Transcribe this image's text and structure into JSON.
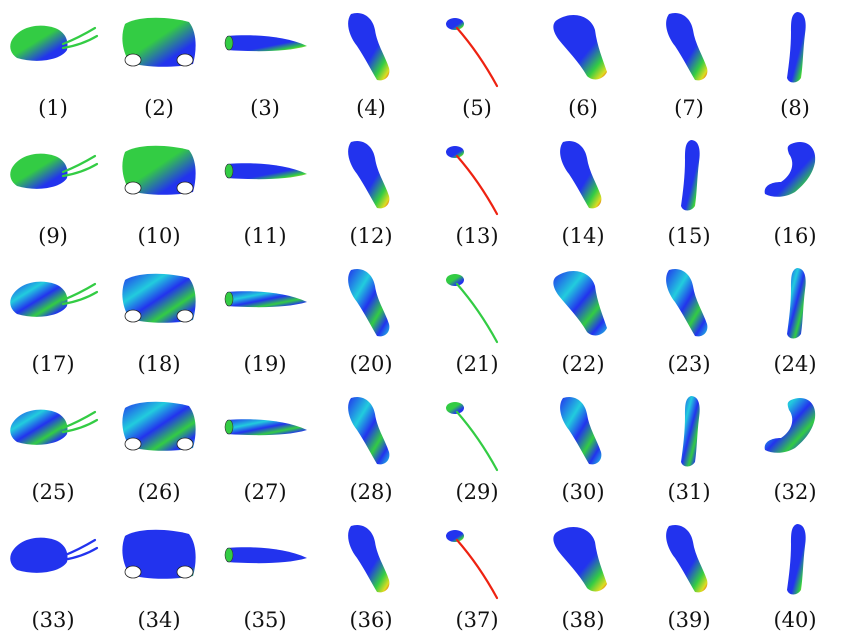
{
  "figure": {
    "panels": [
      {
        "label": "(1)",
        "shape": "head",
        "palette": "green"
      },
      {
        "label": "(2)",
        "shape": "block",
        "palette": "green"
      },
      {
        "label": "(3)",
        "shape": "horn",
        "palette": "blue-red"
      },
      {
        "label": "(4)",
        "shape": "limb",
        "palette": "blue-red"
      },
      {
        "label": "(5)",
        "shape": "stick",
        "palette": "blue-red"
      },
      {
        "label": "(6)",
        "shape": "wide-limb",
        "palette": "blue-red"
      },
      {
        "label": "(7)",
        "shape": "limb",
        "palette": "blue-red"
      },
      {
        "label": "(8)",
        "shape": "tall-limb",
        "palette": "blue-red"
      },
      {
        "label": "(9)",
        "shape": "head",
        "palette": "green"
      },
      {
        "label": "(10)",
        "shape": "block",
        "palette": "green"
      },
      {
        "label": "(11)",
        "shape": "horn",
        "palette": "blue-red"
      },
      {
        "label": "(12)",
        "shape": "limb",
        "palette": "blue-red"
      },
      {
        "label": "(13)",
        "shape": "stick",
        "palette": "blue-red"
      },
      {
        "label": "(14)",
        "shape": "limb",
        "palette": "blue-red"
      },
      {
        "label": "(15)",
        "shape": "tall-limb",
        "palette": "blue-red"
      },
      {
        "label": "(16)",
        "shape": "bent",
        "palette": "blue-red"
      },
      {
        "label": "(17)",
        "shape": "head",
        "palette": "mixed"
      },
      {
        "label": "(18)",
        "shape": "block",
        "palette": "mixed"
      },
      {
        "label": "(19)",
        "shape": "horn",
        "palette": "mixed"
      },
      {
        "label": "(20)",
        "shape": "limb",
        "palette": "mixed"
      },
      {
        "label": "(21)",
        "shape": "stick",
        "palette": "green"
      },
      {
        "label": "(22)",
        "shape": "wide-limb",
        "palette": "mixed"
      },
      {
        "label": "(23)",
        "shape": "limb",
        "palette": "mixed"
      },
      {
        "label": "(24)",
        "shape": "tall-limb",
        "palette": "mixed"
      },
      {
        "label": "(25)",
        "shape": "head",
        "palette": "mixed"
      },
      {
        "label": "(26)",
        "shape": "block",
        "palette": "mixed"
      },
      {
        "label": "(27)",
        "shape": "horn",
        "palette": "mixed"
      },
      {
        "label": "(28)",
        "shape": "limb",
        "palette": "mixed"
      },
      {
        "label": "(29)",
        "shape": "stick",
        "palette": "green"
      },
      {
        "label": "(30)",
        "shape": "limb",
        "palette": "mixed"
      },
      {
        "label": "(31)",
        "shape": "tall-limb",
        "palette": "mixed"
      },
      {
        "label": "(32)",
        "shape": "bent",
        "palette": "mixed"
      },
      {
        "label": "(33)",
        "shape": "head",
        "palette": "blue"
      },
      {
        "label": "(34)",
        "shape": "block",
        "palette": "blue"
      },
      {
        "label": "(35)",
        "shape": "horn",
        "palette": "blue"
      },
      {
        "label": "(36)",
        "shape": "limb",
        "palette": "blue-red"
      },
      {
        "label": "(37)",
        "shape": "stick",
        "palette": "blue-red"
      },
      {
        "label": "(38)",
        "shape": "wide-limb",
        "palette": "blue-red"
      },
      {
        "label": "(39)",
        "shape": "limb",
        "palette": "blue-red"
      },
      {
        "label": "(40)",
        "shape": "tall-limb",
        "palette": "blue-red"
      }
    ]
  },
  "colors": {
    "blue": "#2233ee",
    "green": "#33cc44",
    "red": "#ee2211",
    "yellow": "#dddd22",
    "cyan": "#22ccdd"
  }
}
